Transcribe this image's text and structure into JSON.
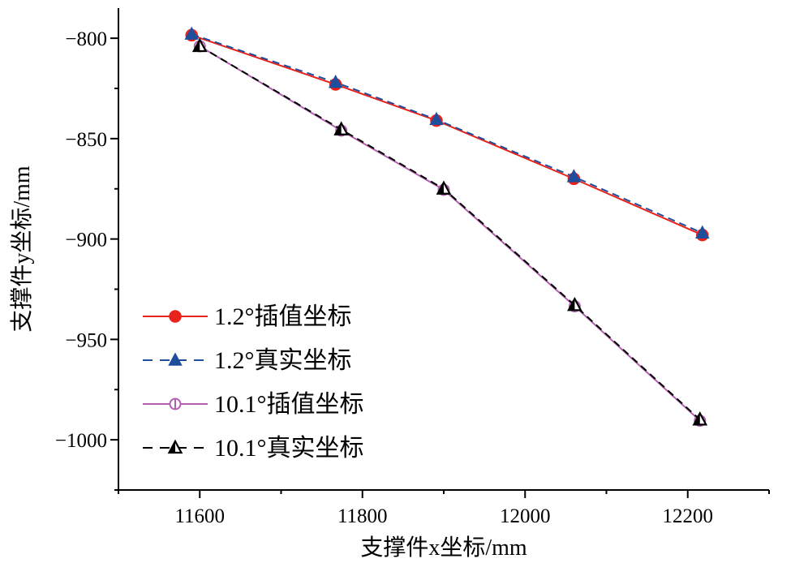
{
  "chart_data": {
    "type": "line",
    "title": "",
    "xlabel": "支撑件x坐标/mm",
    "ylabel": "支撑件y坐标/mm",
    "xlim": [
      11500,
      12300
    ],
    "ylim": [
      -1025,
      -785
    ],
    "xticks": [
      11600,
      11800,
      12000,
      12200
    ],
    "yticks": [
      -800,
      -850,
      -900,
      -950,
      -1000
    ],
    "xtick_labels": [
      "11600",
      "11800",
      "12000",
      "12200"
    ],
    "ytick_labels": [
      "−800",
      "−850",
      "−900",
      "−950",
      "−1000"
    ],
    "legend_position": "lower-left",
    "grid": false,
    "series": [
      {
        "name": "1.2°插值坐标",
        "color": "#e8231b",
        "line": "solid",
        "marker": "circle-filled",
        "x": [
          11590,
          11767,
          11891,
          12060,
          12218
        ],
        "y": [
          -798.5,
          -823,
          -841,
          -870,
          -898
        ]
      },
      {
        "name": "1.2°真实坐标",
        "color": "#1f4e9c",
        "line": "dashed",
        "marker": "triangle-filled",
        "x": [
          11590,
          11767,
          11891,
          12060,
          12218
        ],
        "y": [
          -798,
          -822,
          -840.5,
          -869,
          -897
        ]
      },
      {
        "name": "10.1°插值坐标",
        "color": "#b35fb0",
        "line": "solid",
        "marker": "circle-half",
        "x": [
          11600,
          11774,
          11900,
          12061,
          12215
        ],
        "y": [
          -804,
          -846,
          -875.5,
          -933.5,
          -990.5
        ]
      },
      {
        "name": "10.1°真实坐标",
        "color": "#000000",
        "line": "dashed",
        "marker": "triangle-half",
        "x": [
          11600,
          11774,
          11900,
          12061,
          12215
        ],
        "y": [
          -804,
          -845.5,
          -875,
          -933,
          -990
        ]
      }
    ]
  }
}
